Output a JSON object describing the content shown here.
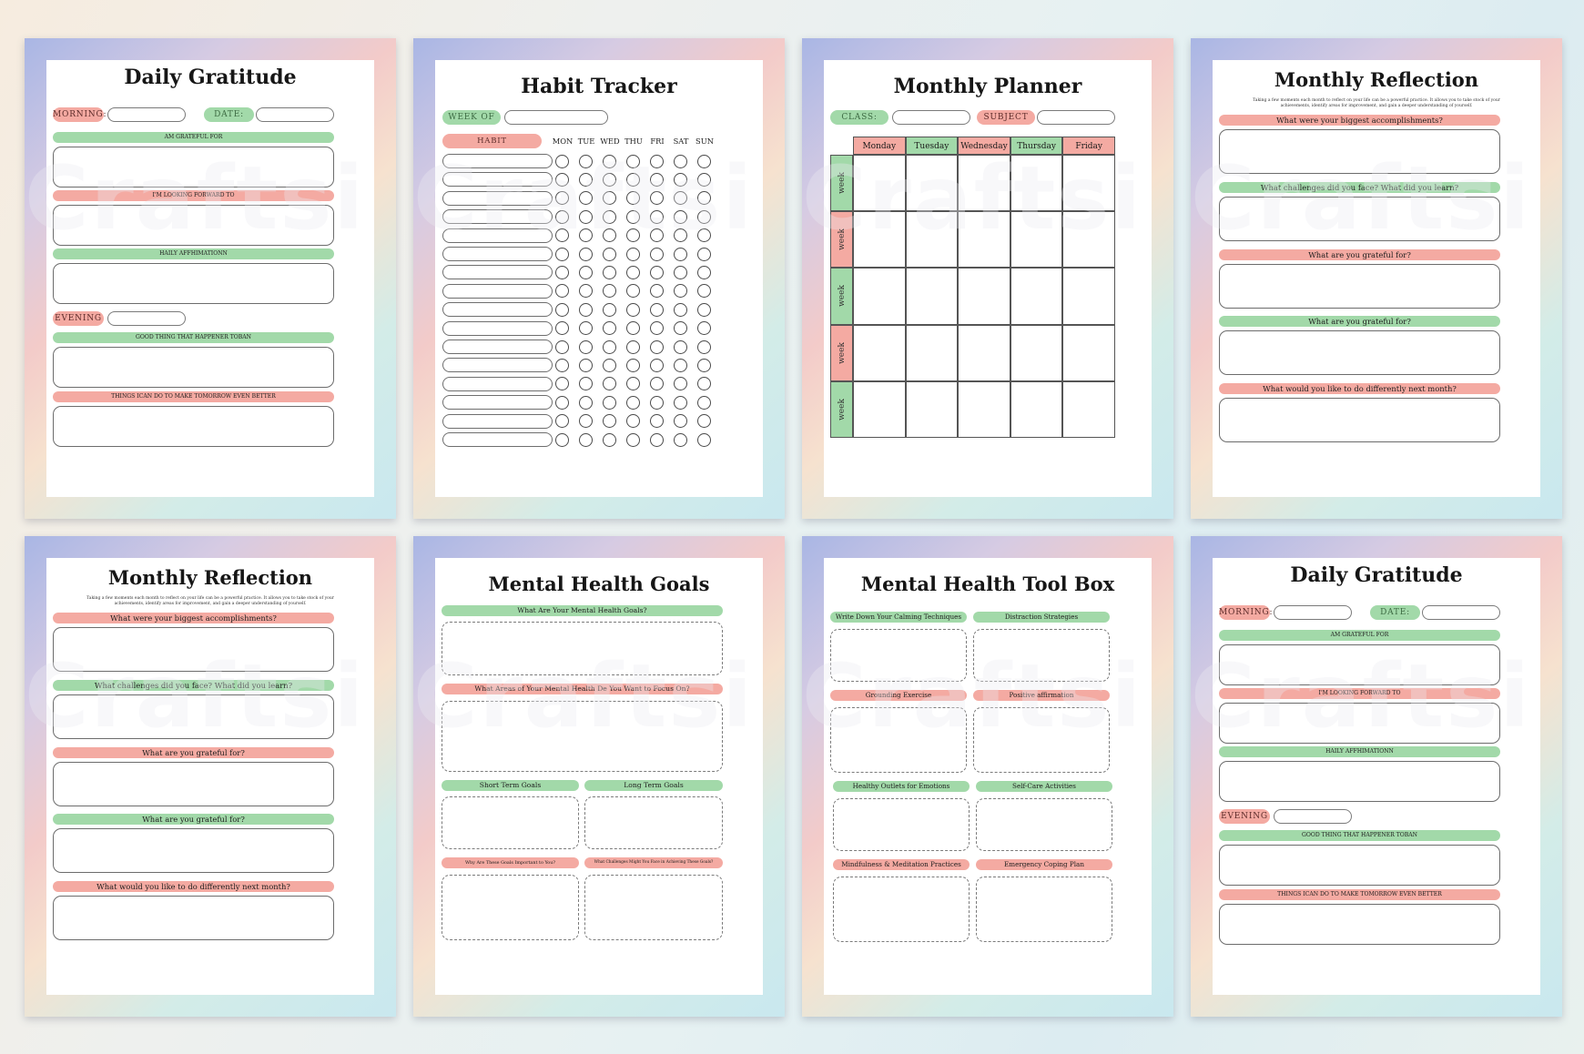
{
  "watermark": "Craftsi",
  "colors": {
    "green": "#a2d9a9",
    "pink": "#f4aaa2"
  },
  "cards": [
    {
      "type": "daily_gratitude",
      "title": "Daily Gratitude",
      "morning_label": "MORNING:",
      "date_label": "DATE:",
      "evening_label": "EVENING",
      "bars": [
        "AM GRATEFUL FOR",
        "I'M LOOKING FORWARD TO",
        "HAILY AFFHIMATIONN",
        "GOOD THING THAT HAPPENER TOBAN",
        "THINGS ICAN DO TO MAKE TOMORROW EVEN BETTER"
      ]
    },
    {
      "type": "habit_tracker",
      "title": "Habit Tracker",
      "week_label": "WEEK OF",
      "habit_label": "HABIT",
      "days": [
        "MON",
        "TUE",
        "WED",
        "THU",
        "FRI",
        "SAT",
        "SUN"
      ],
      "habit_rows": 16
    },
    {
      "type": "monthly_planner",
      "title": "Monthly Planner",
      "class_label": "CLASS:",
      "subject_label": "SUBJECT",
      "days": [
        "Monday",
        "Tuesday",
        "Wednesday",
        "Thursday",
        "Friday"
      ],
      "week_label": "week",
      "weeks": 5
    },
    {
      "type": "monthly_reflection",
      "title": "Monthly Reflection",
      "description": "Taking a few moments each month to reflect on your life can be a powerful practice. It allows you to take stock of your achievements, identify areas for improvement, and gain a deeper understanding of yourself.",
      "questions": [
        "What were your biggest accomplishments?",
        "What challenges did you face? What did you learn?",
        "What are you grateful for?",
        "What are you grateful for?",
        "What would you like to do differently next month?"
      ]
    },
    {
      "type": "monthly_reflection",
      "title": "Monthly Reflection",
      "description": "Taking a few moments each month to reflect on your life can be a powerful practice. It allows you to take stock of your achievements, identify areas for improvement, and gain a deeper understanding of yourself.",
      "questions": [
        "What were your biggest accomplishments?",
        "What challenges did you face? What did you learn?",
        "What are you grateful for?",
        "What are you grateful for?",
        "What would you like to do differently next month?"
      ]
    },
    {
      "type": "mental_health_goals",
      "title": "Mental Health Goals",
      "sections": [
        "What Are Your Mental Health Goals?",
        "What Areas of Your Mental Health De You Want to Focus On?"
      ],
      "short_term": "Short Term Goals",
      "long_term": "Long Term Goals",
      "why": "Why Are These Goals Important to You?",
      "challenges": "What Challenges Might You Face in Achieving These Goals?"
    },
    {
      "type": "toolbox",
      "title": "Mental Health Tool Box",
      "items": [
        "Write Down Your Calming Techniques",
        "Distraction Strategies",
        "Grounding Exercise",
        "Positive affirmation",
        "Healthy Outlets for Emotions",
        "Self-Care Activities",
        "Mindfulness & Meditation Practices",
        "Emergency Coping Plan"
      ]
    },
    {
      "type": "daily_gratitude",
      "title": "Daily Gratitude",
      "morning_label": "MORNING:",
      "date_label": "DATE:",
      "evening_label": "EVENING",
      "bars": [
        "AM GRATEFUL FOR",
        "I'M LOOKING FORWARD TO",
        "HAILY AFFHIMATIONN",
        "GOOD THING THAT HAPPENER TOBAN",
        "THINGS ICAN DO TO MAKE TOMORROW EVEN BETTER"
      ]
    }
  ]
}
